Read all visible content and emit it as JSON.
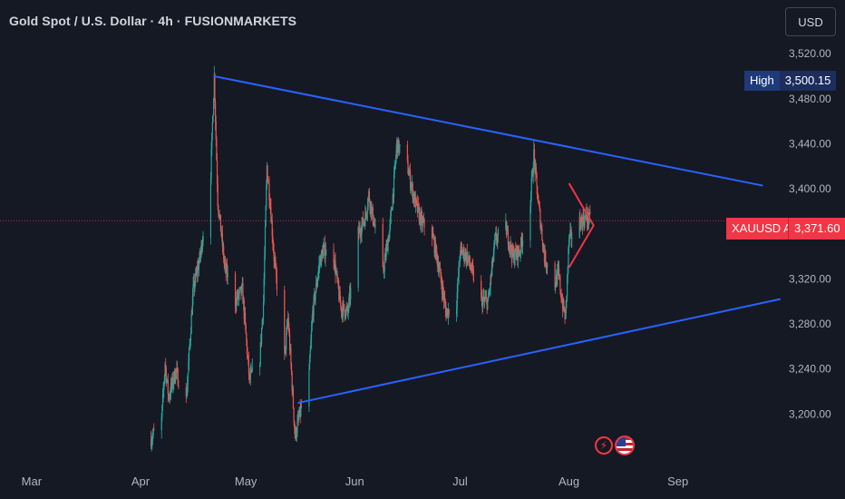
{
  "header": {
    "title": "Gold Spot / U.S. Dollar · 4h · FUSIONMARKETS",
    "currency": "USD"
  },
  "badges": {
    "high_label": "High",
    "high_value": "3,500.15",
    "ask_label": "XAUUSD Ask",
    "ask_value": "3,371.60"
  },
  "colors": {
    "background": "#151924",
    "up": "#26a69a",
    "down": "#ef5350",
    "trendline": "#2962ff",
    "arrow": "#f23645",
    "text": "#b2b5be"
  },
  "chart_data": {
    "type": "candlestick",
    "title": "Gold Spot / U.S. Dollar · 4h · FUSIONMARKETS",
    "x_ticks": [
      "Mar",
      "Apr",
      "May",
      "Jun",
      "Jul",
      "Aug",
      "Sep"
    ],
    "y_ticks": [
      "3,200.00",
      "3,240.00",
      "3,280.00",
      "3,320.00",
      "3,360.00",
      "3,400.00",
      "3,440.00",
      "3,480.00",
      "3,520.00"
    ],
    "ylim": [
      3160,
      3550
    ],
    "x_range": [
      "2025-02-20",
      "2025-09-30"
    ],
    "last_price": 3371.6,
    "high": 3500.15,
    "price_path": [
      [
        "2025-04-04",
        3178
      ],
      [
        "2025-04-07",
        3195
      ],
      [
        "2025-04-08",
        3245
      ],
      [
        "2025-04-09",
        3215
      ],
      [
        "2025-04-11",
        3238
      ],
      [
        "2025-04-14",
        3212
      ],
      [
        "2025-04-16",
        3310
      ],
      [
        "2025-04-18",
        3340
      ],
      [
        "2025-04-21",
        3415
      ],
      [
        "2025-04-22",
        3500
      ],
      [
        "2025-04-23",
        3390
      ],
      [
        "2025-04-24",
        3360
      ],
      [
        "2025-04-25",
        3330
      ],
      [
        "2025-04-28",
        3300
      ],
      [
        "2025-04-30",
        3310
      ],
      [
        "2025-05-01",
        3270
      ],
      [
        "2025-05-02",
        3230
      ],
      [
        "2025-05-05",
        3250
      ],
      [
        "2025-05-06",
        3300
      ],
      [
        "2025-05-07",
        3420
      ],
      [
        "2025-05-08",
        3385
      ],
      [
        "2025-05-09",
        3340
      ],
      [
        "2025-05-12",
        3250
      ],
      [
        "2025-05-13",
        3285
      ],
      [
        "2025-05-14",
        3235
      ],
      [
        "2025-05-15",
        3180
      ],
      [
        "2025-05-16",
        3195
      ],
      [
        "2025-05-19",
        3235
      ],
      [
        "2025-05-20",
        3290
      ],
      [
        "2025-05-22",
        3335
      ],
      [
        "2025-05-23",
        3345
      ],
      [
        "2025-05-26",
        3340
      ],
      [
        "2025-05-28",
        3295
      ],
      [
        "2025-05-30",
        3290
      ],
      [
        "2025-06-02",
        3360
      ],
      [
        "2025-06-04",
        3375
      ],
      [
        "2025-06-05",
        3395
      ],
      [
        "2025-06-09",
        3325
      ],
      [
        "2025-06-11",
        3365
      ],
      [
        "2025-06-12",
        3400
      ],
      [
        "2025-06-13",
        3440
      ],
      [
        "2025-06-16",
        3420
      ],
      [
        "2025-06-18",
        3390
      ],
      [
        "2025-06-20",
        3370
      ],
      [
        "2025-06-23",
        3360
      ],
      [
        "2025-06-25",
        3330
      ],
      [
        "2025-06-27",
        3290
      ],
      [
        "2025-06-30",
        3300
      ],
      [
        "2025-07-01",
        3345
      ],
      [
        "2025-07-03",
        3340
      ],
      [
        "2025-07-07",
        3300
      ],
      [
        "2025-07-09",
        3300
      ],
      [
        "2025-07-11",
        3355
      ],
      [
        "2025-07-14",
        3365
      ],
      [
        "2025-07-16",
        3340
      ],
      [
        "2025-07-18",
        3345
      ],
      [
        "2025-07-21",
        3390
      ],
      [
        "2025-07-22",
        3430
      ],
      [
        "2025-07-23",
        3395
      ],
      [
        "2025-07-25",
        3340
      ],
      [
        "2025-07-28",
        3315
      ],
      [
        "2025-07-29",
        3325
      ],
      [
        "2025-07-30",
        3300
      ],
      [
        "2025-07-31",
        3285
      ],
      [
        "2025-08-01",
        3355
      ],
      [
        "2025-08-04",
        3370
      ],
      [
        "2025-08-06",
        3375
      ],
      [
        "2025-08-07",
        3372
      ]
    ],
    "trendlines": [
      {
        "name": "",
        "points": [
          [
            "2025-04-22",
            3500
          ],
          [
            "2025-09-25",
            3403
          ]
        ]
      },
      {
        "name": "",
        "points": [
          [
            "2025-05-16",
            3210
          ],
          [
            "2025-09-30",
            3302
          ]
        ]
      }
    ],
    "arrow": {
      "x": [
        "2025-08-01",
        "2025-08-08"
      ],
      "y": [
        3330,
        3405
      ]
    },
    "grid": false,
    "legend": "none"
  }
}
